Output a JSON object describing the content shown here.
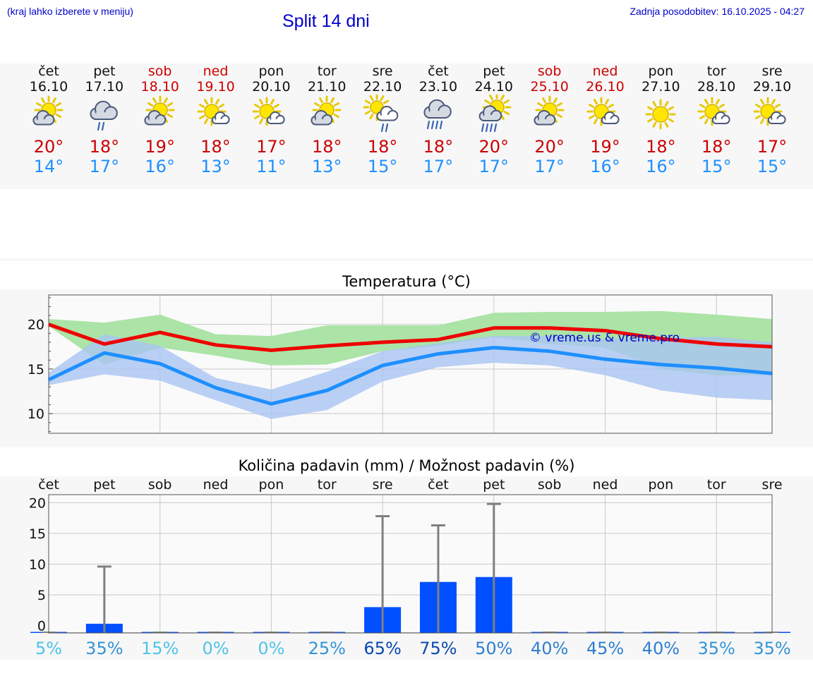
{
  "header": {
    "hint": "(kraj lahko izberete v meniju)",
    "title": "Split 14 dni",
    "updated": "Zadnja posodobitev: 16.10.2025 - 04:27"
  },
  "days": [
    {
      "name": "čet",
      "date": "16.10",
      "weekend": false,
      "icon": "sun-cloud-icon",
      "tmax": "20°",
      "tmin": "14°"
    },
    {
      "name": "pet",
      "date": "17.10",
      "weekend": false,
      "icon": "cloud-rain-icon",
      "tmax": "18°",
      "tmin": "17°"
    },
    {
      "name": "sob",
      "date": "18.10",
      "weekend": true,
      "icon": "sun-cloud-icon",
      "tmax": "19°",
      "tmin": "16°"
    },
    {
      "name": "ned",
      "date": "19.10",
      "weekend": true,
      "icon": "sun-small-cloud-icon",
      "tmax": "18°",
      "tmin": "13°"
    },
    {
      "name": "pon",
      "date": "20.10",
      "weekend": false,
      "icon": "sun-small-cloud-icon",
      "tmax": "17°",
      "tmin": "11°"
    },
    {
      "name": "tor",
      "date": "21.10",
      "weekend": false,
      "icon": "sun-cloud-icon",
      "tmax": "18°",
      "tmin": "13°"
    },
    {
      "name": "sre",
      "date": "22.10",
      "weekend": false,
      "icon": "sun-cloud-rain-icon",
      "tmax": "18°",
      "tmin": "15°"
    },
    {
      "name": "čet",
      "date": "23.10",
      "weekend": false,
      "icon": "cloud-heavy-rain-icon",
      "tmax": "18°",
      "tmin": "17°"
    },
    {
      "name": "pet",
      "date": "24.10",
      "weekend": false,
      "icon": "sun-cloud-heavy-rain-icon",
      "tmax": "20°",
      "tmin": "17°"
    },
    {
      "name": "sob",
      "date": "25.10",
      "weekend": true,
      "icon": "sun-cloud-icon",
      "tmax": "20°",
      "tmin": "17°"
    },
    {
      "name": "ned",
      "date": "26.10",
      "weekend": true,
      "icon": "sun-small-cloud-icon",
      "tmax": "19°",
      "tmin": "16°"
    },
    {
      "name": "pon",
      "date": "27.10",
      "weekend": false,
      "icon": "sun-icon",
      "tmax": "18°",
      "tmin": "16°"
    },
    {
      "name": "tor",
      "date": "28.10",
      "weekend": false,
      "icon": "sun-small-cloud-icon",
      "tmax": "18°",
      "tmin": "15°"
    },
    {
      "name": "sre",
      "date": "29.10",
      "weekend": false,
      "icon": "sun-small-cloud-icon",
      "tmax": "17°",
      "tmin": "15°"
    }
  ],
  "colors": {
    "max_line": "#ee0000",
    "max_band": "#a6e3a1",
    "min_line": "#1e8fff",
    "min_band": "#a9c4f2",
    "bar": "#0050ff",
    "whisker": "#808080",
    "hint_text": "#0000cc",
    "weekend": "#cc0000"
  },
  "chart_data": [
    {
      "type": "line",
      "title": "Temperatura (°C)",
      "watermark": "© vreme.us & vreme.pro",
      "ylim": [
        7.8,
        23.3
      ],
      "yticks": [
        10,
        15,
        20
      ],
      "grid": true,
      "series": [
        {
          "name": "",
          "role": "max",
          "values": [
            20,
            17.8,
            19.1,
            17.7,
            17.1,
            17.6,
            18.0,
            18.3,
            19.6,
            19.6,
            19.3,
            18.4,
            17.8,
            17.5
          ],
          "upper": [
            20.6,
            20.2,
            21.1,
            18.9,
            18.7,
            19.9,
            19.9,
            19.9,
            21.3,
            21.4,
            21.4,
            21.5,
            21.1,
            20.6
          ],
          "lower": [
            19.8,
            15.5,
            17.4,
            16.5,
            15.4,
            15.5,
            17.0,
            17.6,
            18.6,
            17.8,
            17.4,
            15.0,
            14.3,
            14.3
          ]
        },
        {
          "name": "",
          "role": "min",
          "values": [
            13.8,
            16.8,
            15.6,
            12.9,
            11.1,
            12.6,
            15.4,
            16.7,
            17.4,
            17.0,
            16.1,
            15.5,
            15.1,
            14.5
          ],
          "upper": [
            14.6,
            18.9,
            17.6,
            14.0,
            12.7,
            14.7,
            17.0,
            17.9,
            18.7,
            18.7,
            18.4,
            18.5,
            18.6,
            18.0
          ],
          "lower": [
            13.2,
            14.4,
            13.7,
            11.5,
            9.4,
            10.4,
            13.6,
            15.2,
            15.7,
            15.4,
            14.3,
            12.6,
            11.8,
            11.5
          ]
        }
      ]
    },
    {
      "type": "bar",
      "title": "Količina padavin (mm) / Možnost padavin (%)",
      "categories": [
        "čet",
        "pet",
        "sob",
        "ned",
        "pon",
        "tor",
        "sre",
        "čet",
        "pet",
        "sob",
        "ned",
        "pon",
        "tor",
        "sre"
      ],
      "values": [
        0,
        0.3,
        0,
        0,
        0,
        0,
        3.0,
        7.1,
        7.9,
        0,
        0,
        0,
        0,
        0
      ],
      "max": [
        0,
        9.6,
        0,
        0,
        0,
        0,
        17.8,
        16.3,
        19.8,
        0,
        0,
        0,
        0,
        0
      ],
      "probability": [
        "5%",
        "35%",
        "15%",
        "0%",
        "0%",
        "25%",
        "65%",
        "75%",
        "50%",
        "40%",
        "45%",
        "40%",
        "35%",
        "35%"
      ],
      "probability_values": [
        5,
        35,
        15,
        0,
        0,
        25,
        65,
        75,
        50,
        40,
        45,
        40,
        35,
        35
      ],
      "ylim": [
        -1.2,
        21.3
      ],
      "yticks": [
        0,
        5,
        10,
        15,
        20
      ],
      "grid": true
    }
  ]
}
